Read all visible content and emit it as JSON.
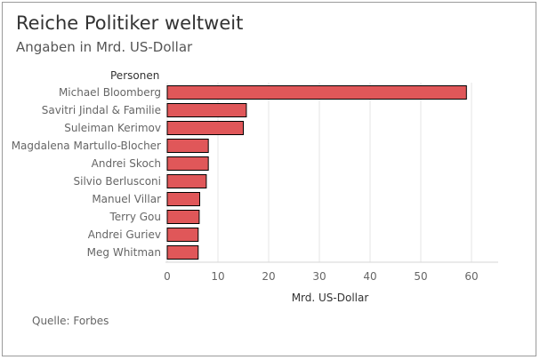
{
  "title": "Reiche Politiker weltweit",
  "subtitle": "Angaben in Mrd. US-Dollar",
  "source": "Quelle: Forbes",
  "chart_data": {
    "type": "bar",
    "orientation": "horizontal",
    "category_header": "Personen",
    "xlabel": "Mrd. US-Dollar",
    "xlim": [
      0,
      65
    ],
    "xticks": [
      0,
      10,
      20,
      30,
      40,
      50,
      60
    ],
    "bar_color": "#e05759",
    "bar_edge_color": "#000000",
    "grid": "vertical",
    "categories": [
      "Michael Bloomberg",
      "Savitri Jindal & Familie",
      "Suleiman Kerimov",
      "Magdalena Martullo-Blocher",
      "Andrei Skoch",
      "Silvio Berlusconi",
      "Manuel Villar",
      "Terry Gou",
      "Andrei Guriev",
      "Meg Whitman"
    ],
    "values": [
      59.0,
      15.6,
      15.0,
      8.1,
      8.1,
      7.7,
      6.4,
      6.3,
      6.1,
      6.1
    ]
  }
}
